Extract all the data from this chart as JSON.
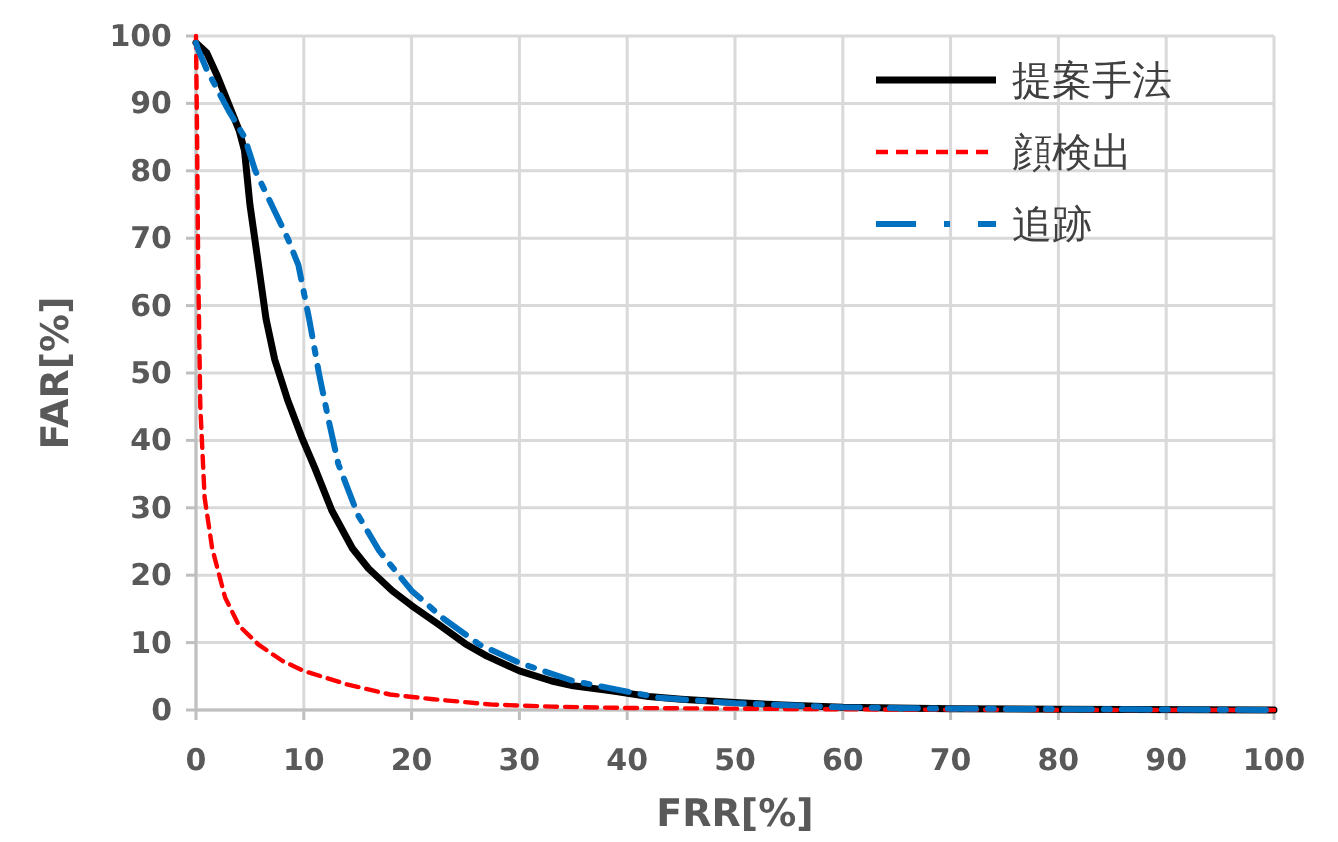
{
  "chart_data": {
    "type": "line",
    "xlabel": "FRR[%]",
    "ylabel": "FAR[%]",
    "xlim": [
      0,
      100
    ],
    "ylim": [
      0,
      100
    ],
    "xticks": [
      0,
      10,
      20,
      30,
      40,
      50,
      60,
      70,
      80,
      90,
      100
    ],
    "yticks": [
      0,
      10,
      20,
      30,
      40,
      50,
      60,
      70,
      80,
      90,
      100
    ],
    "grid": true,
    "legend": "top right",
    "marker": "none",
    "series": [
      {
        "name": "提案手法",
        "color": "#000000",
        "line_style": "solid",
        "x": [
          0,
          1,
          2,
          3,
          4,
          4.5,
          5,
          5.8,
          6.5,
          7.3,
          8.5,
          9.8,
          11,
          12.6,
          14.5,
          16,
          18.2,
          20,
          22.5,
          25,
          27,
          30,
          33,
          35,
          38.7,
          42,
          45,
          50,
          55,
          60,
          70,
          80,
          100
        ],
        "values": [
          99,
          97.5,
          94,
          90,
          86,
          83,
          75,
          66,
          58,
          52,
          46,
          40.5,
          36,
          29.6,
          24,
          21,
          17.7,
          15.5,
          12.7,
          9.8,
          8,
          5.8,
          4.3,
          3.6,
          2.8,
          2,
          1.6,
          1.1,
          0.7,
          0.4,
          0.2,
          0.1,
          0
        ]
      },
      {
        "name": "顔検出",
        "color": "#ff0000",
        "line_style": "dashed",
        "x": [
          0,
          0.1,
          0.2,
          0.4,
          0.8,
          1.5,
          2.7,
          4,
          5.8,
          8,
          10,
          14,
          18,
          22,
          27.5,
          33,
          40,
          50,
          60,
          80,
          100
        ],
        "values": [
          100,
          85,
          66,
          45,
          31.5,
          24,
          16.7,
          12.5,
          9.7,
          7.3,
          5.8,
          3.8,
          2.3,
          1.6,
          0.8,
          0.5,
          0.3,
          0.2,
          0.1,
          0,
          0
        ]
      },
      {
        "name": "追跡",
        "color": "#0070c0",
        "line_style": "dashdot",
        "x": [
          0,
          0.2,
          1,
          2,
          3,
          4.5,
          5.5,
          7.3,
          8.5,
          9.5,
          10.5,
          11.4,
          12.3,
          13.2,
          15,
          17,
          20,
          23,
          26.3,
          30,
          35,
          43,
          50,
          60,
          70,
          100
        ],
        "values": [
          99,
          98,
          95,
          92,
          89,
          85,
          80,
          74,
          70,
          66,
          58,
          50,
          43,
          36.5,
          29,
          23.6,
          17.7,
          13.5,
          9.7,
          7,
          4.3,
          1.8,
          1,
          0.4,
          0.2,
          0
        ]
      }
    ]
  }
}
